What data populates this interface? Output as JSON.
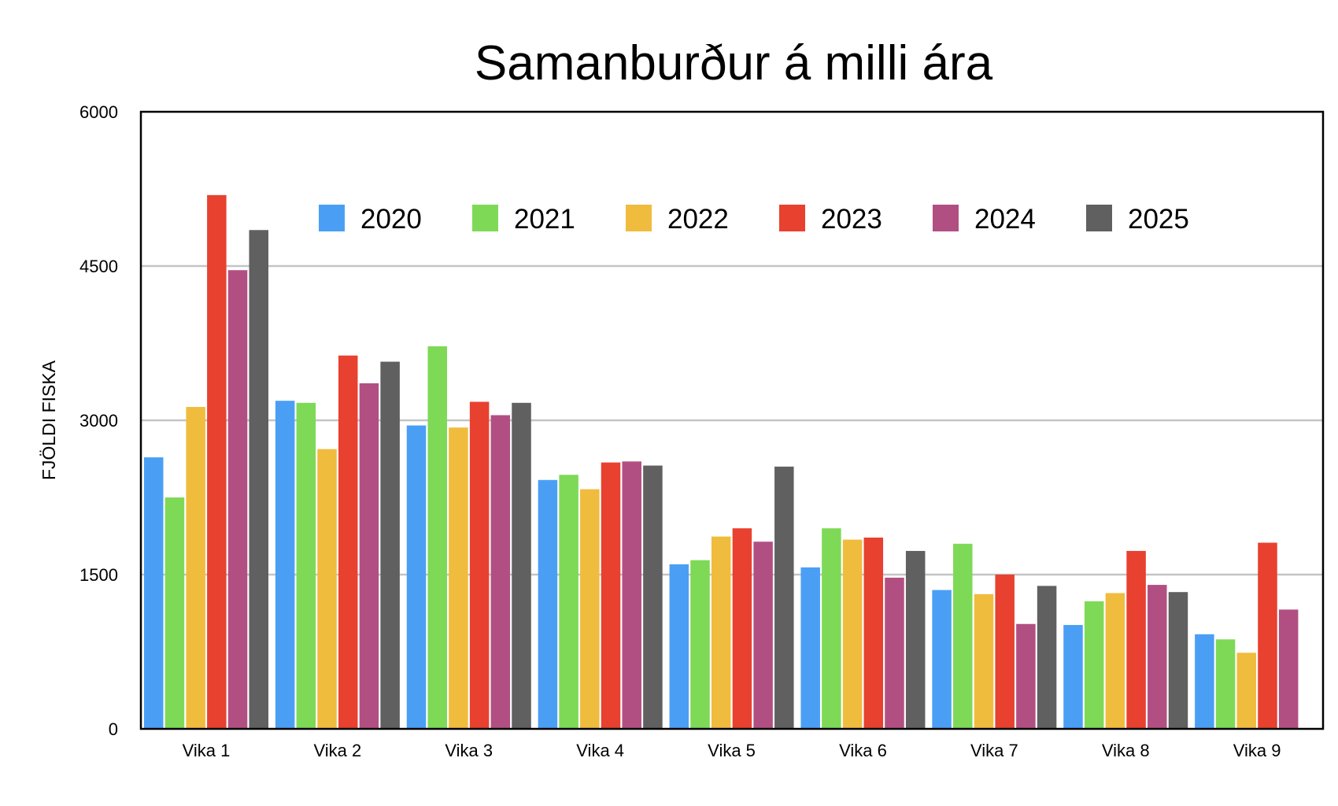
{
  "chart_data": {
    "type": "bar",
    "title": "Samanburður á milli ára",
    "xlabel": "",
    "ylabel": "FJÖLDI FISKA",
    "ylim": [
      0,
      6000
    ],
    "yticks": [
      "0",
      "1500",
      "3000",
      "4500",
      "6000"
    ],
    "grid": "horizontal",
    "legend_position": "top",
    "categories": [
      "Vika 1",
      "Vika 2",
      "Vika 3",
      "Vika 4",
      "Vika 5",
      "Vika 6",
      "Vika 7",
      "Vika 8",
      "Vika 9"
    ],
    "series": [
      {
        "name": "2020",
        "color": "#4A9FF5",
        "values": [
          2640,
          3190,
          2950,
          2420,
          1600,
          1570,
          1350,
          1010,
          920
        ]
      },
      {
        "name": "2021",
        "color": "#7ED957",
        "values": [
          2250,
          3170,
          3720,
          2470,
          1640,
          1950,
          1800,
          1240,
          870
        ]
      },
      {
        "name": "2022",
        "color": "#F0BC3E",
        "values": [
          3130,
          2720,
          2930,
          2330,
          1870,
          1840,
          1310,
          1320,
          740
        ]
      },
      {
        "name": "2023",
        "color": "#E8412F",
        "values": [
          5190,
          3630,
          3180,
          2590,
          1950,
          1860,
          1500,
          1730,
          1810
        ]
      },
      {
        "name": "2024",
        "color": "#B24F82",
        "values": [
          4460,
          3360,
          3050,
          2600,
          1820,
          1470,
          1020,
          1400,
          1160
        ]
      },
      {
        "name": "2025",
        "color": "#606060",
        "values": [
          4850,
          3570,
          3170,
          2560,
          2550,
          1730,
          1390,
          1330,
          null
        ]
      }
    ]
  }
}
